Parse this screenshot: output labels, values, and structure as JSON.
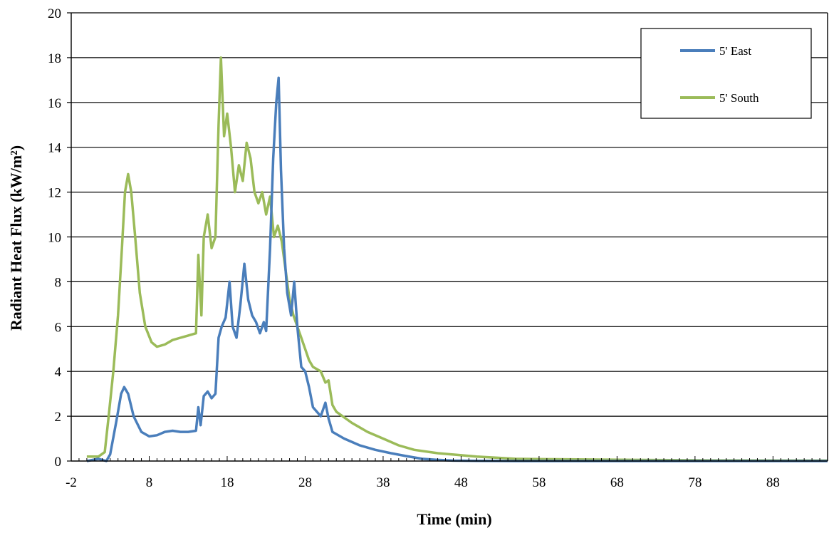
{
  "chart_data": {
    "type": "line",
    "xlabel": "Time (min)",
    "ylabel": "Radiant Heat Flux (kW/m²)",
    "xlim": [
      -2,
      95
    ],
    "ylim": [
      0,
      20
    ],
    "x_ticks": [
      -2,
      8,
      18,
      28,
      38,
      48,
      58,
      68,
      78,
      88
    ],
    "x_tick_labels": [
      "-2",
      "8",
      "18",
      "28",
      "38",
      "48",
      "58",
      "68",
      "78",
      "88"
    ],
    "y_ticks": [
      0,
      2,
      4,
      6,
      8,
      10,
      12,
      14,
      16,
      18,
      20
    ],
    "y_tick_labels": [
      "0",
      "2",
      "4",
      "6",
      "8",
      "10",
      "12",
      "14",
      "16",
      "18",
      "20"
    ],
    "grid": "horizontal",
    "legend_position": "top-right",
    "series": [
      {
        "name": "5' East",
        "color": "#4a7ebb",
        "points": [
          [
            0,
            0
          ],
          [
            1.5,
            0.1
          ],
          [
            2.5,
            0
          ],
          [
            3,
            0.3
          ],
          [
            3.8,
            1.8
          ],
          [
            4.4,
            3.0
          ],
          [
            4.8,
            3.3
          ],
          [
            5.3,
            3.0
          ],
          [
            6,
            2.0
          ],
          [
            7,
            1.3
          ],
          [
            8,
            1.1
          ],
          [
            9,
            1.15
          ],
          [
            10,
            1.3
          ],
          [
            11,
            1.35
          ],
          [
            12,
            1.3
          ],
          [
            13,
            1.3
          ],
          [
            14,
            1.35
          ],
          [
            14.3,
            2.4
          ],
          [
            14.6,
            1.6
          ],
          [
            15,
            2.9
          ],
          [
            15.5,
            3.1
          ],
          [
            16,
            2.8
          ],
          [
            16.5,
            3.0
          ],
          [
            16.9,
            5.5
          ],
          [
            17.3,
            6.0
          ],
          [
            17.8,
            6.4
          ],
          [
            18.3,
            8.0
          ],
          [
            18.7,
            6.0
          ],
          [
            19.2,
            5.5
          ],
          [
            19.7,
            7.0
          ],
          [
            20.2,
            8.8
          ],
          [
            20.7,
            7.2
          ],
          [
            21.2,
            6.5
          ],
          [
            21.7,
            6.2
          ],
          [
            22.2,
            5.7
          ],
          [
            22.7,
            6.2
          ],
          [
            23.0,
            5.8
          ],
          [
            23.5,
            9.5
          ],
          [
            23.9,
            13.5
          ],
          [
            24.3,
            16.0
          ],
          [
            24.6,
            17.1
          ],
          [
            24.9,
            13.0
          ],
          [
            25.3,
            9.5
          ],
          [
            25.7,
            7.5
          ],
          [
            26.2,
            6.5
          ],
          [
            26.6,
            8.0
          ],
          [
            27,
            6.0
          ],
          [
            27.5,
            4.2
          ],
          [
            28,
            4.0
          ],
          [
            28.5,
            3.3
          ],
          [
            29,
            2.4
          ],
          [
            29.5,
            2.2
          ],
          [
            30,
            2.0
          ],
          [
            30.6,
            2.6
          ],
          [
            31,
            1.9
          ],
          [
            31.5,
            1.3
          ],
          [
            33,
            1.0
          ],
          [
            35,
            0.7
          ],
          [
            37,
            0.5
          ],
          [
            39,
            0.35
          ],
          [
            41,
            0.22
          ],
          [
            43,
            0.1
          ],
          [
            45,
            0.05
          ],
          [
            47,
            0.02
          ],
          [
            50,
            0.01
          ],
          [
            55,
            0
          ],
          [
            60,
            0
          ],
          [
            70,
            0
          ],
          [
            80,
            0
          ],
          [
            95,
            0
          ]
        ]
      },
      {
        "name": "5' South",
        "color": "#9bbb59",
        "points": [
          [
            0,
            0.2
          ],
          [
            1.5,
            0.2
          ],
          [
            2.3,
            0.4
          ],
          [
            2.8,
            2.0
          ],
          [
            3.4,
            4.0
          ],
          [
            4,
            6.5
          ],
          [
            4.5,
            9.5
          ],
          [
            4.9,
            12.0
          ],
          [
            5.3,
            12.8
          ],
          [
            5.7,
            12.0
          ],
          [
            6.2,
            10.0
          ],
          [
            6.8,
            7.5
          ],
          [
            7.5,
            6.0
          ],
          [
            8.3,
            5.3
          ],
          [
            9,
            5.1
          ],
          [
            10,
            5.2
          ],
          [
            11,
            5.4
          ],
          [
            12,
            5.5
          ],
          [
            13,
            5.6
          ],
          [
            14,
            5.7
          ],
          [
            14.3,
            9.2
          ],
          [
            14.7,
            6.5
          ],
          [
            15,
            10.0
          ],
          [
            15.5,
            11.0
          ],
          [
            16,
            9.5
          ],
          [
            16.5,
            10.0
          ],
          [
            16.9,
            15.0
          ],
          [
            17.2,
            18.0
          ],
          [
            17.6,
            14.5
          ],
          [
            18,
            15.5
          ],
          [
            18.5,
            14.0
          ],
          [
            19,
            12.0
          ],
          [
            19.5,
            13.2
          ],
          [
            20,
            12.5
          ],
          [
            20.5,
            14.2
          ],
          [
            21,
            13.5
          ],
          [
            21.5,
            12.0
          ],
          [
            22,
            11.5
          ],
          [
            22.5,
            12.0
          ],
          [
            23,
            11.0
          ],
          [
            23.5,
            11.8
          ],
          [
            24,
            10.0
          ],
          [
            24.5,
            10.5
          ],
          [
            25,
            9.8
          ],
          [
            25.5,
            8.5
          ],
          [
            26,
            7.2
          ],
          [
            26.5,
            6.5
          ],
          [
            27,
            6.0
          ],
          [
            27.5,
            5.5
          ],
          [
            28,
            5.0
          ],
          [
            28.5,
            4.5
          ],
          [
            29,
            4.2
          ],
          [
            30,
            4.0
          ],
          [
            30.6,
            3.5
          ],
          [
            31,
            3.6
          ],
          [
            31.5,
            2.5
          ],
          [
            32,
            2.2
          ],
          [
            34,
            1.7
          ],
          [
            36,
            1.3
          ],
          [
            38,
            1.0
          ],
          [
            40,
            0.7
          ],
          [
            42,
            0.5
          ],
          [
            45,
            0.35
          ],
          [
            50,
            0.2
          ],
          [
            55,
            0.1
          ],
          [
            60,
            0.08
          ],
          [
            70,
            0.05
          ],
          [
            80,
            0.03
          ],
          [
            95,
            0.02
          ]
        ]
      }
    ]
  }
}
